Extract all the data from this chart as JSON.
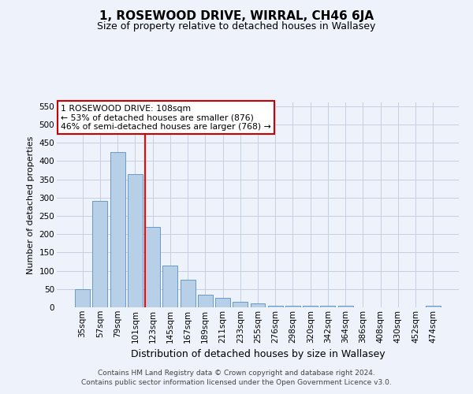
{
  "title": "1, ROSEWOOD DRIVE, WIRRAL, CH46 6JA",
  "subtitle": "Size of property relative to detached houses in Wallasey",
  "xlabel": "Distribution of detached houses by size in Wallasey",
  "ylabel": "Number of detached properties",
  "bar_labels": [
    "35sqm",
    "57sqm",
    "79sqm",
    "101sqm",
    "123sqm",
    "145sqm",
    "167sqm",
    "189sqm",
    "211sqm",
    "233sqm",
    "255sqm",
    "276sqm",
    "298sqm",
    "320sqm",
    "342sqm",
    "364sqm",
    "386sqm",
    "408sqm",
    "430sqm",
    "452sqm",
    "474sqm"
  ],
  "bar_heights": [
    50,
    290,
    425,
    365,
    220,
    115,
    75,
    35,
    25,
    15,
    10,
    5,
    5,
    5,
    5,
    5,
    0,
    0,
    0,
    0,
    5
  ],
  "bar_color": "#b8cfe8",
  "bar_edge_color": "#6699cc",
  "red_line_x": 3.55,
  "annotation_text": "1 ROSEWOOD DRIVE: 108sqm\n← 53% of detached houses are smaller (876)\n46% of semi-detached houses are larger (768) →",
  "annotation_box_color": "#ffffff",
  "annotation_box_edge": "#cc0000",
  "ylim": [
    0,
    560
  ],
  "yticks": [
    0,
    50,
    100,
    150,
    200,
    250,
    300,
    350,
    400,
    450,
    500,
    550
  ],
  "footer": "Contains HM Land Registry data © Crown copyright and database right 2024.\nContains public sector information licensed under the Open Government Licence v3.0.",
  "bg_color": "#eef2fa",
  "grid_color": "#c5cfe0",
  "title_fontsize": 11,
  "subtitle_fontsize": 9,
  "ylabel_fontsize": 8,
  "xlabel_fontsize": 9,
  "tick_fontsize": 7.5,
  "footer_fontsize": 6.5
}
